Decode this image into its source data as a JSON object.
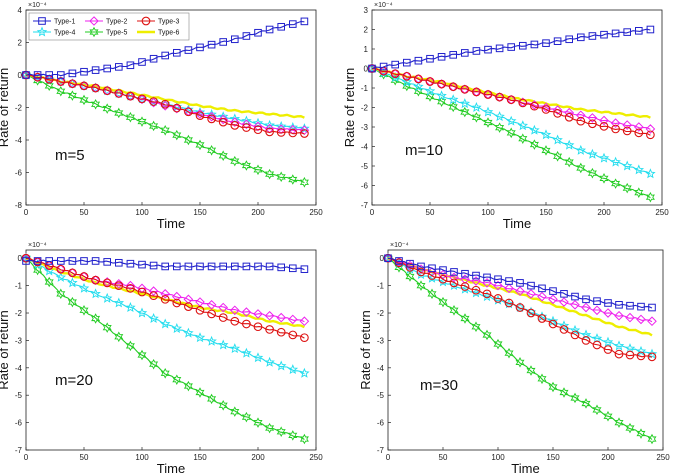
{
  "chart_data": [
    {
      "type": "line",
      "annotation": "m=5",
      "xlabel": "Time",
      "ylabel": "Rate of return",
      "exponent_label": "×10⁻⁴",
      "xlim": [
        0,
        250
      ],
      "ylim": [
        -8,
        4
      ],
      "xticks": [
        "0",
        "50",
        "100",
        "150",
        "200",
        "250"
      ],
      "yticks": [
        "4",
        "2",
        "0",
        "-2",
        "-4",
        "-6",
        "-8"
      ],
      "xtick_values": [
        0,
        50,
        100,
        150,
        200,
        250
      ],
      "ytick_values": [
        4,
        2,
        0,
        -2,
        -4,
        -6,
        -8
      ],
      "legend": [
        "Type-1",
        "Type-2",
        "Type-3",
        "Type-4",
        "Type-5",
        "Type-6"
      ],
      "series": [
        {
          "name": "Type-1",
          "x": [
            0,
            30,
            60,
            90,
            120,
            150,
            180,
            210,
            240
          ],
          "values": [
            0,
            0,
            0.3,
            0.6,
            1.2,
            1.7,
            2.2,
            2.8,
            3.3
          ]
        },
        {
          "name": "Type-2",
          "x": [
            0,
            30,
            60,
            90,
            120,
            150,
            180,
            210,
            240
          ],
          "values": [
            0,
            -0.4,
            -0.8,
            -1.3,
            -1.9,
            -2.4,
            -2.9,
            -3.3,
            -3.4
          ]
        },
        {
          "name": "Type-3",
          "x": [
            0,
            30,
            60,
            90,
            120,
            150,
            180,
            210,
            240
          ],
          "values": [
            0,
            -0.4,
            -0.8,
            -1.3,
            -1.8,
            -2.5,
            -3.1,
            -3.5,
            -3.6
          ]
        },
        {
          "name": "Type-4",
          "x": [
            0,
            30,
            60,
            90,
            120,
            150,
            180,
            210,
            240
          ],
          "values": [
            0,
            -0.4,
            -0.8,
            -1.3,
            -1.8,
            -2.3,
            -2.7,
            -3.1,
            -3.3
          ]
        },
        {
          "name": "Type-5",
          "x": [
            0,
            30,
            60,
            90,
            120,
            150,
            180,
            210,
            240
          ],
          "values": [
            0,
            -1.0,
            -1.8,
            -2.6,
            -3.4,
            -4.3,
            -5.3,
            -6.1,
            -6.6
          ]
        },
        {
          "name": "Type-6",
          "x": [
            0,
            30,
            60,
            90,
            120,
            150,
            180,
            210,
            240
          ],
          "values": [
            0,
            -0.4,
            -0.7,
            -1.1,
            -1.5,
            -1.9,
            -2.2,
            -2.4,
            -2.6
          ]
        }
      ]
    },
    {
      "type": "line",
      "annotation": "m=10",
      "xlabel": "Time",
      "ylabel": "Rate of return",
      "exponent_label": "×10⁻⁴",
      "xlim": [
        0,
        250
      ],
      "ylim": [
        -7,
        3
      ],
      "xticks": [
        "0",
        "50",
        "100",
        "150",
        "200",
        "250"
      ],
      "yticks": [
        "3",
        "2",
        "1",
        "0",
        "-1",
        "-2",
        "-3",
        "-4",
        "-5",
        "-6",
        "-7"
      ],
      "xtick_values": [
        0,
        50,
        100,
        150,
        200,
        250
      ],
      "ytick_values": [
        3,
        2,
        1,
        0,
        -1,
        -2,
        -3,
        -4,
        -5,
        -6,
        -7
      ],
      "series": [
        {
          "name": "Type-1",
          "x": [
            0,
            30,
            60,
            90,
            120,
            150,
            180,
            210,
            240
          ],
          "values": [
            0,
            0.3,
            0.6,
            0.9,
            1.1,
            1.3,
            1.6,
            1.8,
            2.0
          ]
        },
        {
          "name": "Type-2",
          "x": [
            0,
            30,
            60,
            90,
            120,
            150,
            180,
            210,
            240
          ],
          "values": [
            0,
            -0.4,
            -0.8,
            -1.2,
            -1.6,
            -2.0,
            -2.4,
            -2.8,
            -3.1
          ]
        },
        {
          "name": "Type-3",
          "x": [
            0,
            30,
            60,
            90,
            120,
            150,
            180,
            210,
            240
          ],
          "values": [
            0,
            -0.4,
            -0.8,
            -1.2,
            -1.6,
            -2.1,
            -2.7,
            -3.1,
            -3.4
          ]
        },
        {
          "name": "Type-4",
          "x": [
            0,
            30,
            60,
            90,
            120,
            150,
            180,
            210,
            240
          ],
          "values": [
            0,
            -0.7,
            -1.4,
            -2.0,
            -2.7,
            -3.4,
            -4.2,
            -4.8,
            -5.4
          ]
        },
        {
          "name": "Type-5",
          "x": [
            0,
            30,
            60,
            90,
            120,
            150,
            180,
            210,
            240
          ],
          "values": [
            0,
            -0.9,
            -1.7,
            -2.5,
            -3.3,
            -4.2,
            -5.1,
            -5.9,
            -6.6
          ]
        },
        {
          "name": "Type-6",
          "x": [
            0,
            30,
            60,
            90,
            120,
            150,
            180,
            210,
            240
          ],
          "values": [
            0,
            -0.4,
            -0.7,
            -1.1,
            -1.5,
            -1.8,
            -2.1,
            -2.3,
            -2.5
          ]
        }
      ]
    },
    {
      "type": "line",
      "annotation": "m=20",
      "xlabel": "Time",
      "ylabel": "Rate of return",
      "exponent_label": "×10⁻⁴",
      "xlim": [
        0,
        250
      ],
      "ylim": [
        -7,
        0.3
      ],
      "xticks": [
        "0",
        "50",
        "100",
        "150",
        "200",
        "250"
      ],
      "yticks": [
        "0",
        "-1",
        "-2",
        "-3",
        "-4",
        "-5",
        "-6",
        "-7"
      ],
      "xtick_values": [
        0,
        50,
        100,
        150,
        200,
        250
      ],
      "ytick_values": [
        0,
        -1,
        -2,
        -3,
        -4,
        -5,
        -6,
        -7
      ],
      "series": [
        {
          "name": "Type-1",
          "x": [
            0,
            30,
            60,
            90,
            120,
            150,
            180,
            210,
            240
          ],
          "values": [
            -0.1,
            -0.1,
            -0.1,
            -0.2,
            -0.3,
            -0.3,
            -0.3,
            -0.3,
            -0.4
          ]
        },
        {
          "name": "Type-2",
          "x": [
            0,
            30,
            60,
            90,
            120,
            150,
            180,
            210,
            240
          ],
          "values": [
            0,
            -0.4,
            -0.8,
            -1.0,
            -1.3,
            -1.6,
            -1.9,
            -2.1,
            -2.3
          ]
        },
        {
          "name": "Type-3",
          "x": [
            0,
            30,
            60,
            90,
            120,
            150,
            180,
            210,
            240
          ],
          "values": [
            0,
            -0.4,
            -0.8,
            -1.1,
            -1.5,
            -1.9,
            -2.3,
            -2.6,
            -2.9
          ]
        },
        {
          "name": "Type-4",
          "x": [
            0,
            30,
            60,
            90,
            120,
            150,
            180,
            210,
            240
          ],
          "values": [
            0,
            -0.7,
            -1.3,
            -1.8,
            -2.4,
            -2.9,
            -3.3,
            -3.8,
            -4.2
          ]
        },
        {
          "name": "Type-5",
          "x": [
            0,
            30,
            60,
            90,
            120,
            150,
            180,
            210,
            240
          ],
          "values": [
            0,
            -1.3,
            -2.2,
            -3.2,
            -4.2,
            -4.9,
            -5.6,
            -6.2,
            -6.6
          ]
        },
        {
          "name": "Type-6",
          "x": [
            0,
            30,
            60,
            90,
            120,
            150,
            180,
            210,
            240
          ],
          "values": [
            0,
            -0.5,
            -0.9,
            -1.2,
            -1.5,
            -1.8,
            -2.0,
            -2.3,
            -2.5
          ]
        }
      ]
    },
    {
      "type": "line",
      "annotation": "m=30",
      "xlabel": "Time",
      "ylabel": "Rate of return",
      "exponent_label": "×10⁻⁴",
      "xlim": [
        0,
        250
      ],
      "ylim": [
        -7,
        0.3
      ],
      "xticks": [
        "0",
        "50",
        "100",
        "150",
        "200",
        "250"
      ],
      "yticks": [
        "0",
        "-1",
        "-2",
        "-3",
        "-4",
        "-5",
        "-6",
        "-7"
      ],
      "xtick_values": [
        0,
        50,
        100,
        150,
        200,
        250
      ],
      "ytick_values": [
        0,
        -1,
        -2,
        -3,
        -4,
        -5,
        -6,
        -7
      ],
      "series": [
        {
          "name": "Type-1",
          "x": [
            0,
            30,
            60,
            90,
            120,
            150,
            180,
            210,
            240
          ],
          "values": [
            0,
            -0.3,
            -0.5,
            -0.7,
            -0.9,
            -1.2,
            -1.5,
            -1.7,
            -1.8
          ]
        },
        {
          "name": "Type-2",
          "x": [
            0,
            30,
            60,
            90,
            120,
            150,
            180,
            210,
            240
          ],
          "values": [
            0,
            -0.4,
            -0.7,
            -0.9,
            -1.2,
            -1.5,
            -1.8,
            -2.1,
            -2.3
          ]
        },
        {
          "name": "Type-3",
          "x": [
            0,
            30,
            60,
            90,
            120,
            150,
            180,
            210,
            240
          ],
          "values": [
            0,
            -0.5,
            -0.9,
            -1.3,
            -1.8,
            -2.4,
            -3.0,
            -3.5,
            -3.6
          ]
        },
        {
          "name": "Type-4",
          "x": [
            0,
            30,
            60,
            90,
            120,
            150,
            180,
            210,
            240
          ],
          "values": [
            0,
            -0.6,
            -1.0,
            -1.4,
            -1.8,
            -2.3,
            -2.8,
            -3.2,
            -3.5
          ]
        },
        {
          "name": "Type-5",
          "x": [
            0,
            30,
            60,
            90,
            120,
            150,
            180,
            210,
            240
          ],
          "values": [
            0,
            -1.0,
            -1.9,
            -2.8,
            -3.8,
            -4.7,
            -5.3,
            -6.0,
            -6.6
          ]
        },
        {
          "name": "Type-6",
          "x": [
            0,
            30,
            60,
            90,
            120,
            150,
            180,
            210,
            240
          ],
          "values": [
            0,
            -0.4,
            -0.7,
            -1.0,
            -1.3,
            -1.7,
            -2.1,
            -2.5,
            -2.8
          ]
        }
      ]
    }
  ],
  "series_colors": {
    "Type-1": "#2222cc",
    "Type-2": "#ee22ee",
    "Type-3": "#dd1111",
    "Type-4": "#22ddee",
    "Type-5": "#22cc22",
    "Type-6": "#eeee00"
  },
  "series_markers": {
    "Type-1": "square",
    "Type-2": "diamond",
    "Type-3": "circle",
    "Type-4": "star",
    "Type-5": "hexagram",
    "Type-6": "none"
  }
}
